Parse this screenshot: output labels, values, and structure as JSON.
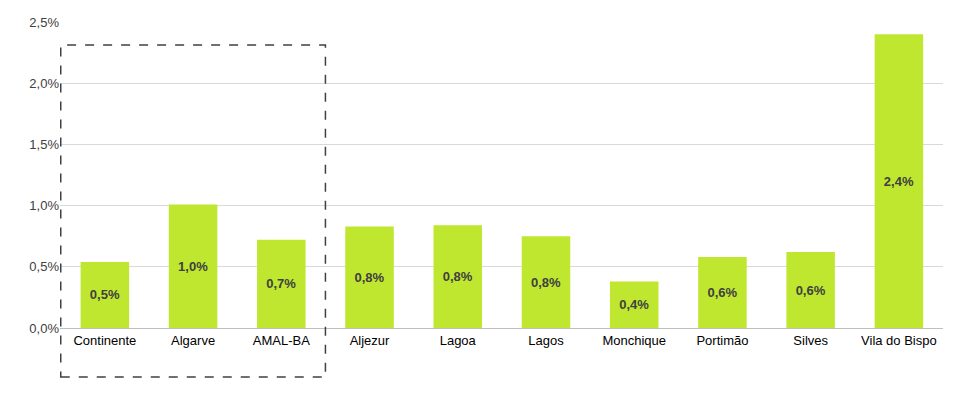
{
  "chart_data": {
    "type": "bar",
    "categories": [
      "Continente",
      "Algarve",
      "AMAL-BA",
      "Aljezur",
      "Lagoa",
      "Lagos",
      "Monchique",
      "Portimão",
      "Silves",
      "Vila do Bispo"
    ],
    "values": [
      0.54,
      1.01,
      0.72,
      0.83,
      0.84,
      0.75,
      0.38,
      0.58,
      0.62,
      2.4
    ],
    "value_labels": [
      "0,5%",
      "1,0%",
      "0,7%",
      "0,8%",
      "0,8%",
      "0,8%",
      "0,4%",
      "0,6%",
      "0,6%",
      "2,4%"
    ],
    "color": "#bfe72f",
    "ylim": [
      0,
      2.5
    ],
    "yticks": [
      {
        "value": 0,
        "label": "0,0%"
      },
      {
        "value": 0.5,
        "label": "0,5%"
      },
      {
        "value": 1,
        "label": "1,0%"
      },
      {
        "value": 1.5,
        "label": "1,5%"
      },
      {
        "value": 2,
        "label": "2,0%"
      },
      {
        "value": 2.5,
        "label": "2,5%"
      }
    ],
    "grid": true,
    "data_labels": true
  }
}
